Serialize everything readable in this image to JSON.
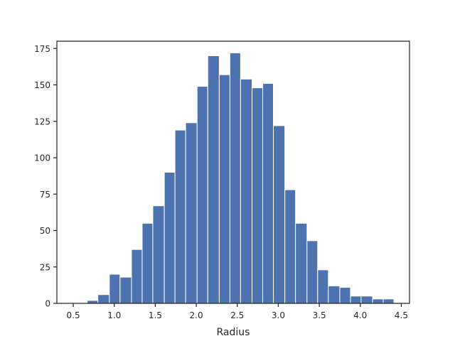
{
  "chart_data": {
    "type": "bar",
    "subtype": "histogram",
    "title": "",
    "xlabel": "Radius",
    "ylabel": "",
    "xlim": [
      0.3,
      4.6
    ],
    "ylim": [
      0,
      180
    ],
    "x_ticks": [
      0.5,
      1.0,
      1.5,
      2.0,
      2.5,
      3.0,
      3.5,
      4.0,
      4.5
    ],
    "x_tick_labels": [
      "0.5",
      "1.0",
      "1.5",
      "2.0",
      "2.5",
      "3.0",
      "3.5",
      "4.0",
      "4.5"
    ],
    "y_ticks": [
      0,
      25,
      50,
      75,
      100,
      125,
      150,
      175
    ],
    "y_tick_labels": [
      "0",
      "25",
      "50",
      "75",
      "100",
      "125",
      "150",
      "175"
    ],
    "grid": false,
    "legend": "none",
    "bar_color": "#4c72b0",
    "bins": [
      {
        "x0": 0.54,
        "x1": 0.67,
        "count": 0
      },
      {
        "x0": 0.67,
        "x1": 0.8,
        "count": 2
      },
      {
        "x0": 0.8,
        "x1": 0.94,
        "count": 6
      },
      {
        "x0": 0.94,
        "x1": 1.07,
        "count": 20
      },
      {
        "x0": 1.07,
        "x1": 1.21,
        "count": 18
      },
      {
        "x0": 1.21,
        "x1": 1.34,
        "count": 37
      },
      {
        "x0": 1.34,
        "x1": 1.47,
        "count": 55
      },
      {
        "x0": 1.47,
        "x1": 1.61,
        "count": 67
      },
      {
        "x0": 1.61,
        "x1": 1.74,
        "count": 90
      },
      {
        "x0": 1.74,
        "x1": 1.87,
        "count": 119
      },
      {
        "x0": 1.87,
        "x1": 2.01,
        "count": 124
      },
      {
        "x0": 2.01,
        "x1": 2.14,
        "count": 149
      },
      {
        "x0": 2.14,
        "x1": 2.28,
        "count": 170
      },
      {
        "x0": 2.28,
        "x1": 2.41,
        "count": 157
      },
      {
        "x0": 2.41,
        "x1": 2.54,
        "count": 172
      },
      {
        "x0": 2.54,
        "x1": 2.68,
        "count": 154
      },
      {
        "x0": 2.68,
        "x1": 2.81,
        "count": 148
      },
      {
        "x0": 2.81,
        "x1": 2.94,
        "count": 151
      },
      {
        "x0": 2.94,
        "x1": 3.08,
        "count": 122
      },
      {
        "x0": 3.08,
        "x1": 3.21,
        "count": 78
      },
      {
        "x0": 3.21,
        "x1": 3.35,
        "count": 55
      },
      {
        "x0": 3.35,
        "x1": 3.48,
        "count": 43
      },
      {
        "x0": 3.48,
        "x1": 3.61,
        "count": 23
      },
      {
        "x0": 3.61,
        "x1": 3.75,
        "count": 12
      },
      {
        "x0": 3.75,
        "x1": 3.88,
        "count": 11
      },
      {
        "x0": 3.88,
        "x1": 4.01,
        "count": 5
      },
      {
        "x0": 4.01,
        "x1": 4.15,
        "count": 5
      },
      {
        "x0": 4.15,
        "x1": 4.28,
        "count": 3
      },
      {
        "x0": 4.28,
        "x1": 4.41,
        "count": 3
      }
    ]
  }
}
